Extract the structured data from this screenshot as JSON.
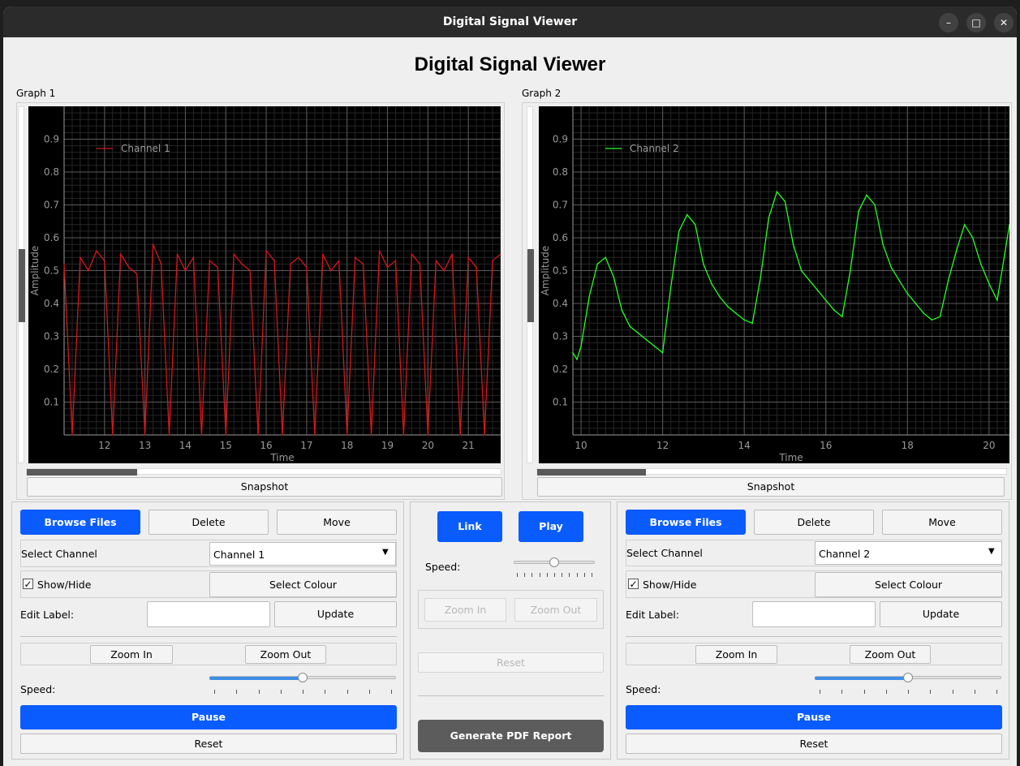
{
  "window": {
    "title": "Digital Signal Viewer"
  },
  "app": {
    "title": "Digital Signal Viewer"
  },
  "graphs": [
    {
      "label": "Graph 1",
      "legend": "Channel 1",
      "color": "#d4161c",
      "x_label": "Time",
      "y_label": "Amplitude",
      "y_ticks": [
        "0.1",
        "0.2",
        "0.3",
        "0.4",
        "0.5",
        "0.6",
        "0.7",
        "0.8",
        "0.9"
      ],
      "x_ticks": [
        "12",
        "13",
        "14",
        "15",
        "16",
        "17",
        "18",
        "19",
        "20",
        "21"
      ],
      "snapshot_label": "Snapshot"
    },
    {
      "label": "Graph 2",
      "legend": "Channel 2",
      "color": "#22ff22",
      "x_label": "Time",
      "y_label": "Amplitude",
      "y_ticks": [
        "0.1",
        "0.2",
        "0.3",
        "0.4",
        "0.5",
        "0.6",
        "0.7",
        "0.8",
        "0.9"
      ],
      "x_ticks": [
        "10",
        "12",
        "14",
        "16",
        "18",
        "20"
      ],
      "snapshot_label": "Snapshot"
    }
  ],
  "chart_data": [
    {
      "type": "line",
      "title": "",
      "xlabel": "Time",
      "ylabel": "Amplitude",
      "xlim": [
        11,
        21.8
      ],
      "ylim": [
        0,
        1
      ],
      "series": [
        {
          "name": "Channel 1",
          "color": "#d4161c",
          "x": [
            11.0,
            11.2,
            11.4,
            11.6,
            11.8,
            12.0,
            12.2,
            12.4,
            12.6,
            12.8,
            13.0,
            13.2,
            13.4,
            13.6,
            13.8,
            14.0,
            14.2,
            14.4,
            14.6,
            14.8,
            15.0,
            15.2,
            15.4,
            15.6,
            15.8,
            16.0,
            16.2,
            16.4,
            16.6,
            16.8,
            17.0,
            17.2,
            17.4,
            17.6,
            17.8,
            18.0,
            18.2,
            18.4,
            18.6,
            18.8,
            19.0,
            19.2,
            19.4,
            19.6,
            19.8,
            20.0,
            20.2,
            20.4,
            20.6,
            20.8,
            21.0,
            21.2,
            21.4,
            21.6,
            21.8
          ],
          "y": [
            0.52,
            0.0,
            0.54,
            0.5,
            0.56,
            0.53,
            0.0,
            0.55,
            0.51,
            0.49,
            0.0,
            0.58,
            0.52,
            0.0,
            0.55,
            0.5,
            0.54,
            0.0,
            0.53,
            0.51,
            0.0,
            0.55,
            0.52,
            0.5,
            0.0,
            0.56,
            0.53,
            0.0,
            0.52,
            0.54,
            0.51,
            0.0,
            0.55,
            0.5,
            0.53,
            0.0,
            0.54,
            0.52,
            0.0,
            0.56,
            0.51,
            0.53,
            0.0,
            0.55,
            0.52,
            0.0,
            0.53,
            0.5,
            0.55,
            0.0,
            0.54,
            0.51,
            0.0,
            0.53,
            0.55
          ]
        }
      ]
    },
    {
      "type": "line",
      "title": "",
      "xlabel": "Time",
      "ylabel": "Amplitude",
      "xlim": [
        9.8,
        20.5
      ],
      "ylim": [
        0,
        1
      ],
      "series": [
        {
          "name": "Channel 2",
          "color": "#22ff22",
          "x": [
            9.8,
            9.9,
            10.0,
            10.2,
            10.4,
            10.6,
            10.8,
            11.0,
            11.2,
            11.4,
            11.6,
            11.8,
            12.0,
            12.2,
            12.4,
            12.6,
            12.8,
            13.0,
            13.2,
            13.4,
            13.6,
            13.8,
            14.0,
            14.2,
            14.4,
            14.6,
            14.8,
            15.0,
            15.2,
            15.4,
            15.6,
            15.8,
            16.0,
            16.2,
            16.4,
            16.6,
            16.8,
            17.0,
            17.2,
            17.4,
            17.6,
            17.8,
            18.0,
            18.2,
            18.4,
            18.6,
            18.8,
            19.0,
            19.2,
            19.4,
            19.6,
            19.8,
            20.0,
            20.2,
            20.5
          ],
          "y": [
            0.25,
            0.23,
            0.27,
            0.42,
            0.52,
            0.54,
            0.48,
            0.38,
            0.33,
            0.31,
            0.29,
            0.27,
            0.25,
            0.45,
            0.62,
            0.67,
            0.64,
            0.52,
            0.46,
            0.42,
            0.39,
            0.37,
            0.35,
            0.34,
            0.48,
            0.66,
            0.74,
            0.71,
            0.58,
            0.5,
            0.47,
            0.44,
            0.41,
            0.38,
            0.36,
            0.5,
            0.68,
            0.73,
            0.7,
            0.58,
            0.51,
            0.47,
            0.43,
            0.4,
            0.37,
            0.35,
            0.36,
            0.47,
            0.56,
            0.64,
            0.6,
            0.52,
            0.46,
            0.41,
            0.64
          ]
        }
      ]
    }
  ],
  "left_panel": {
    "browse": "Browse Files",
    "delete": "Delete",
    "move": "Move",
    "select_channel_label": "Select Channel",
    "select_channel_value": "Channel 1",
    "show_hide_label": "Show/Hide",
    "show_hide_checked": "✓",
    "select_colour": "Select Colour",
    "edit_label_label": "Edit Label:",
    "edit_label_value": "",
    "update": "Update",
    "zoom_in": "Zoom In",
    "zoom_out": "Zoom Out",
    "speed_label": "Speed:",
    "speed_value": 0.5,
    "pause": "Pause",
    "reset": "Reset"
  },
  "center_panel": {
    "link": "Link",
    "play": "Play",
    "speed_label": "Speed:",
    "speed_value": 0.5,
    "zoom_in": "Zoom In",
    "zoom_out": "Zoom Out",
    "reset": "Reset",
    "generate_pdf": "Generate PDF Report"
  },
  "right_panel": {
    "browse": "Browse Files",
    "delete": "Delete",
    "move": "Move",
    "select_channel_label": "Select Channel",
    "select_channel_value": "Channel 2",
    "show_hide_label": "Show/Hide",
    "show_hide_checked": "✓",
    "select_colour": "Select Colour",
    "edit_label_label": "Edit Label:",
    "edit_label_value": "",
    "update": "Update",
    "zoom_in": "Zoom In",
    "zoom_out": "Zoom Out",
    "speed_label": "Speed:",
    "speed_value": 0.5,
    "pause": "Pause",
    "reset": "Reset"
  },
  "icons": {
    "minimize": "minimize-icon",
    "maximize": "maximize-icon",
    "close": "close-icon",
    "dropdown": "chevron-down-icon"
  },
  "colors": {
    "accent": "#0a5cff",
    "window_bg": "#efefef",
    "plot_bg": "#000000",
    "pdf_button": "#5c5c5c"
  }
}
